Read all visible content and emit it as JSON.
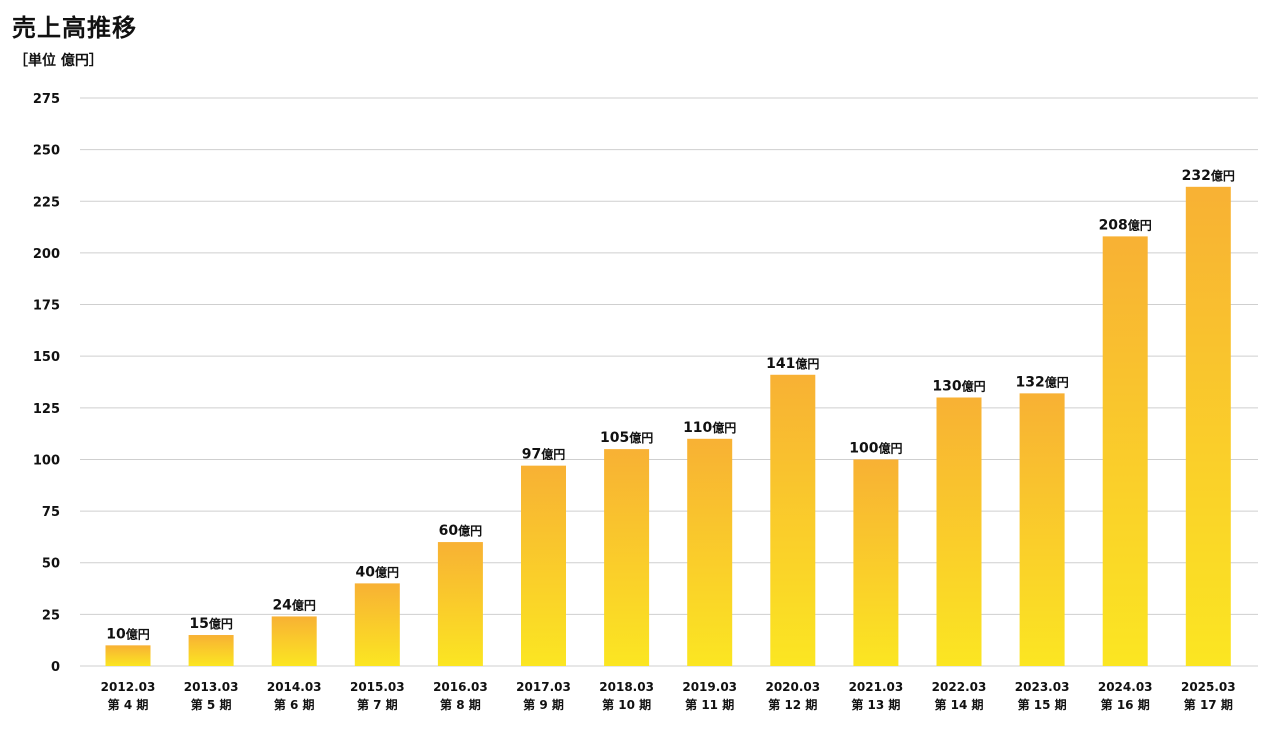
{
  "chart_data": {
    "type": "bar",
    "title": "売上高推移",
    "ylabel": "［単位 億円］",
    "ylim": [
      0,
      275
    ],
    "yticks": [
      0,
      25,
      50,
      75,
      100,
      125,
      150,
      175,
      200,
      225,
      250,
      275
    ],
    "grid": true,
    "categories": [
      "2012.03",
      "2013.03",
      "2014.03",
      "2015.03",
      "2016.03",
      "2017.03",
      "2018.03",
      "2019.03",
      "2020.03",
      "2021.03",
      "2022.03",
      "2023.03",
      "2024.03",
      "2025.03"
    ],
    "periods": [
      "第 4 期",
      "第 5 期",
      "第 6 期",
      "第 7 期",
      "第 8 期",
      "第 9 期",
      "第 10 期",
      "第 11 期",
      "第 12 期",
      "第 13 期",
      "第 14 期",
      "第 15 期",
      "第 16 期",
      "第 17 期"
    ],
    "values": [
      10,
      15,
      24,
      40,
      60,
      97,
      105,
      110,
      141,
      100,
      130,
      132,
      208,
      232
    ],
    "value_unit": "億円",
    "bar_color_top": "#f8b134",
    "bar_color_bottom": "#fbe622"
  }
}
